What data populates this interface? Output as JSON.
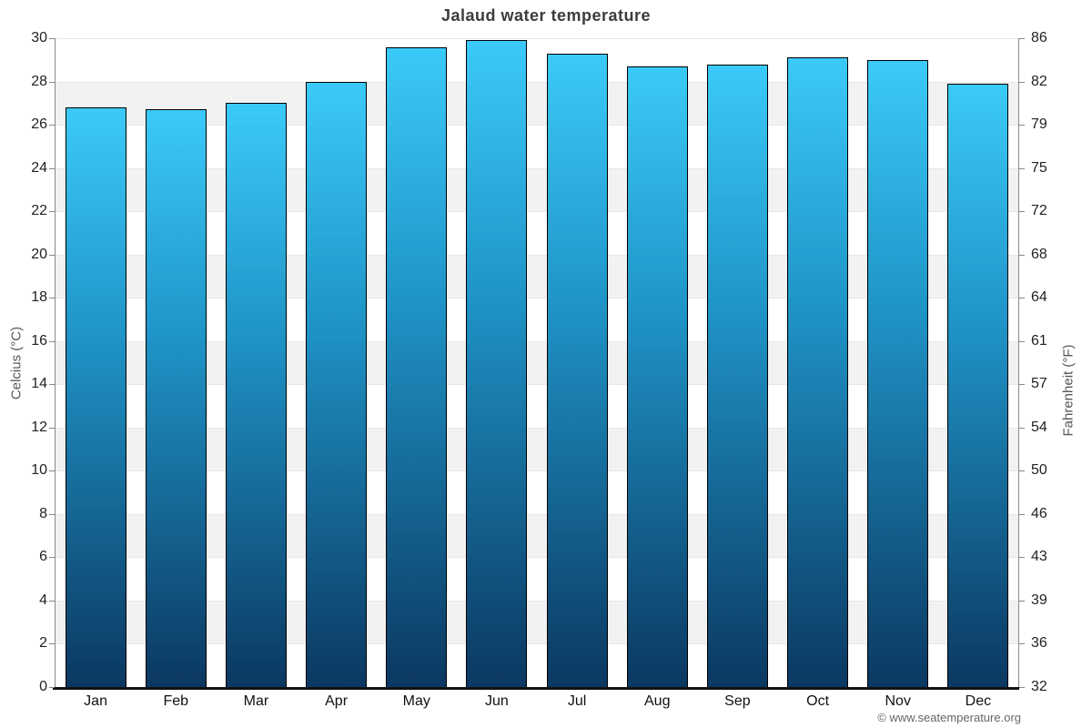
{
  "header": {
    "title": "Jalaud water temperature"
  },
  "footer": {
    "credit": "© www.seatemperature.org"
  },
  "chart_data": {
    "type": "bar",
    "title": "Jalaud water temperature",
    "categories": [
      "Jan",
      "Feb",
      "Mar",
      "Apr",
      "May",
      "Jun",
      "Jul",
      "Aug",
      "Sep",
      "Oct",
      "Nov",
      "Dec"
    ],
    "values": [
      26.8,
      26.7,
      27.0,
      28.0,
      29.6,
      29.9,
      29.3,
      28.7,
      28.8,
      29.1,
      29.0,
      27.9
    ],
    "unit": "°C",
    "ylabel_left": "Celcius (°C)",
    "ylabel_right": "Fahrenheit (°F)",
    "ylim": [
      0,
      30
    ],
    "yticks_celsius": [
      0,
      2,
      4,
      6,
      8,
      10,
      12,
      14,
      16,
      18,
      20,
      22,
      24,
      26,
      28,
      30
    ],
    "yticks_fahrenheit": [
      32,
      36,
      39,
      43,
      46,
      50,
      54,
      57,
      61,
      64,
      68,
      72,
      75,
      79,
      82,
      86
    ],
    "legend_position": "none",
    "grid": "alternating gray/white horizontal bands every 2°C with light gridlines",
    "colors": {
      "bar_gradient_top": "#3BCAF8",
      "bar_gradient_bottom": "#0B3861",
      "bar_border": "#000000",
      "band_gray": "#F2F2F2",
      "gridline": "#E7E7E7",
      "axis_line": "#888888",
      "baseline": "#111111",
      "title_text": "#3C3C3C",
      "tick_text": "#222222",
      "axis_title_text": "#555555",
      "footer_text": "#666666"
    }
  }
}
